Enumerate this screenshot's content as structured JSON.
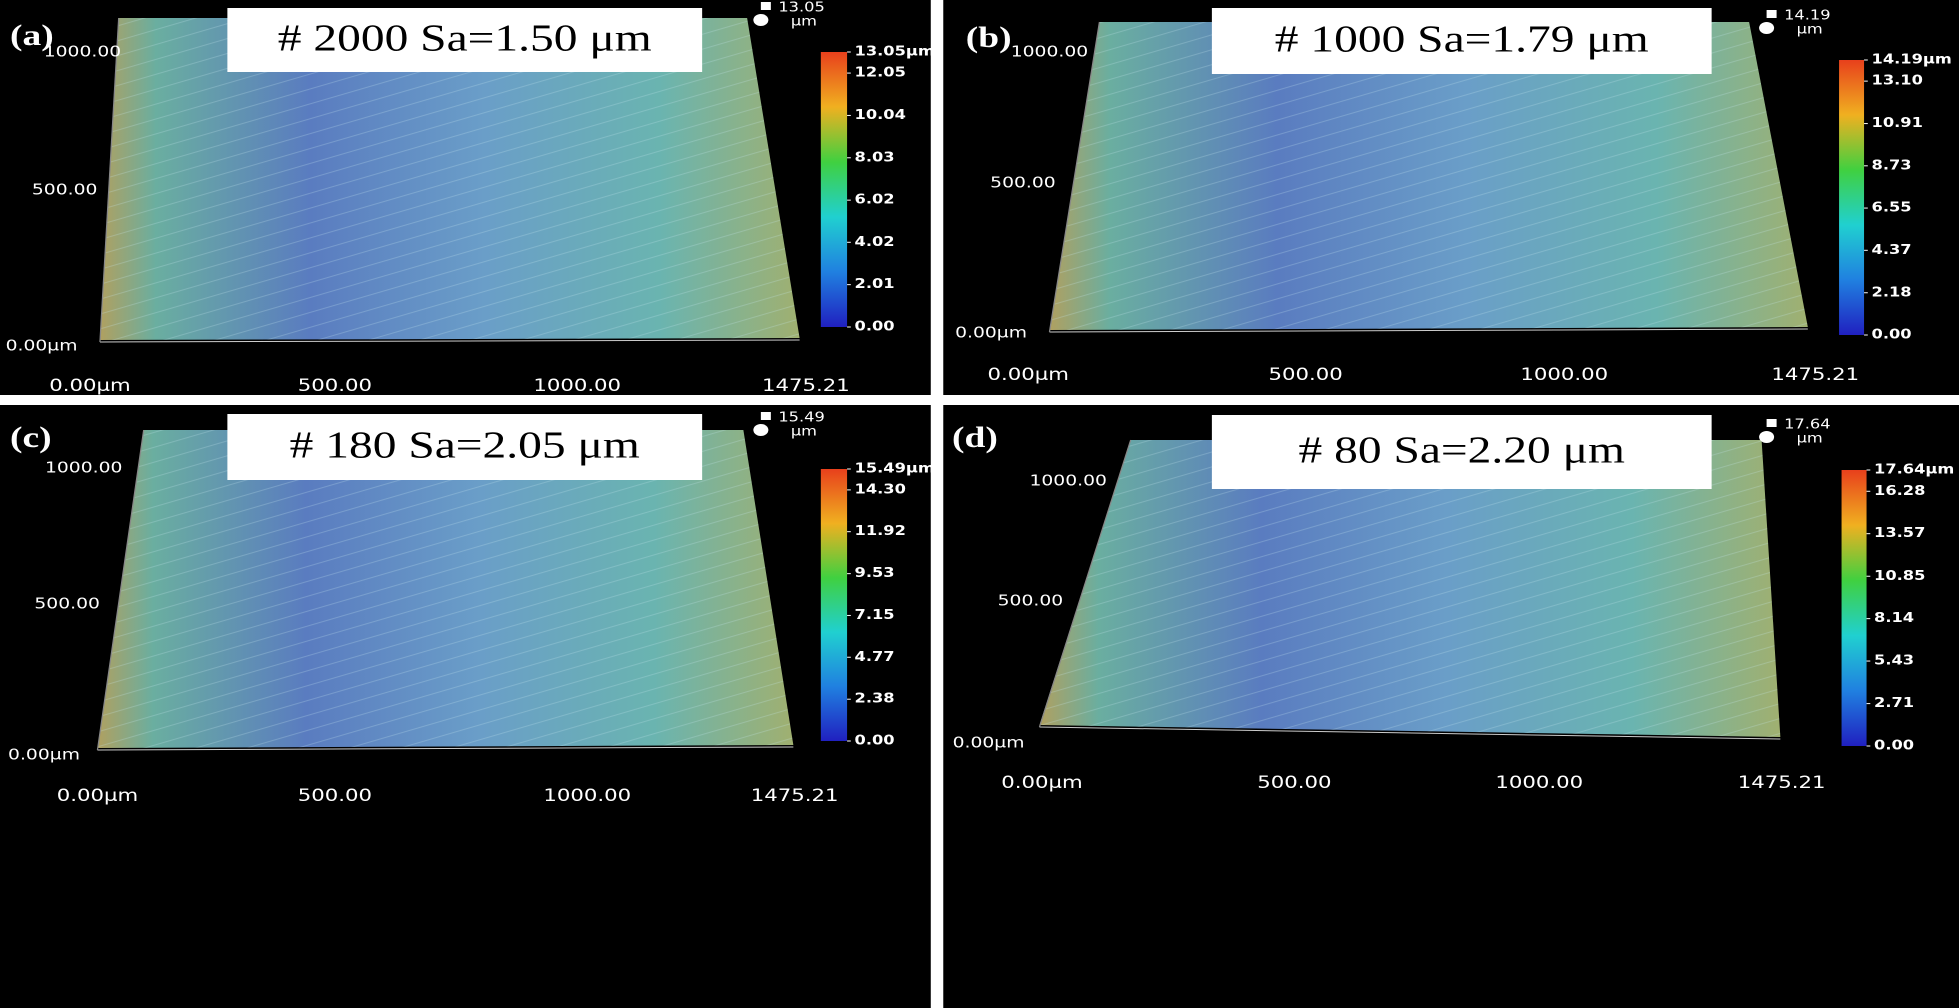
{
  "panels": [
    {
      "label": "(a)",
      "title": "# 2000 Sa=1.50 μm",
      "corner_value": "13.05",
      "corner_unit": "μm",
      "colorbar": {
        "max": 13.05,
        "ticks": [
          {
            "value": 13.05,
            "label": "13.05μm"
          },
          12.05,
          10.04,
          8.03,
          6.02,
          4.02,
          2.01,
          {
            "value": 0,
            "label": "0.00"
          }
        ]
      },
      "y_labels": [
        "1000.00",
        "500.00",
        "0.00μm"
      ],
      "x_labels": [
        "0.00μm",
        "500.00",
        "1000.00",
        "1475.21"
      ]
    },
    {
      "label": "(b)",
      "title": "# 1000 Sa=1.79 μm",
      "corner_value": "14.19",
      "corner_unit": "μm",
      "colorbar": {
        "max": 14.19,
        "ticks": [
          {
            "value": 14.19,
            "label": "14.19μm"
          },
          {
            "value": 13.1,
            "label": "13.10"
          },
          10.91,
          8.73,
          6.55,
          4.37,
          2.18,
          {
            "value": 0,
            "label": "0.00"
          }
        ]
      },
      "y_labels": [
        "1000.00",
        "500.00",
        "0.00μm"
      ],
      "x_labels": [
        "0.00μm",
        "500.00",
        "1000.00",
        "1475.21"
      ]
    },
    {
      "label": "(c)",
      "title": "# 180 Sa=2.05 μm",
      "corner_value": "15.49",
      "corner_unit": "μm",
      "colorbar": {
        "max": 15.49,
        "ticks": [
          {
            "value": 15.49,
            "label": "15.49μm"
          },
          {
            "value": 14.3,
            "label": "14.30"
          },
          11.92,
          9.53,
          7.15,
          4.77,
          2.38,
          {
            "value": 0,
            "label": "0.00"
          }
        ]
      },
      "y_labels": [
        "1000.00",
        "500.00",
        "0.00μm"
      ],
      "x_labels": [
        "0.00μm",
        "500.00",
        "1000.00",
        "1475.21"
      ]
    },
    {
      "label": "(d)",
      "title": "# 80 Sa=2.20 μm",
      "corner_value": "17.64",
      "corner_unit": "μm",
      "colorbar": {
        "max": 17.64,
        "ticks": [
          {
            "value": 17.64,
            "label": "17.64μm"
          },
          16.28,
          13.57,
          10.85,
          8.14,
          5.43,
          2.71,
          {
            "value": 0,
            "label": "0.00"
          }
        ]
      },
      "y_labels": [
        "1000.00",
        "500.00",
        "0.00μm"
      ],
      "x_labels": [
        "0.00μm",
        "500.00",
        "1000.00",
        "1475.21"
      ]
    }
  ]
}
